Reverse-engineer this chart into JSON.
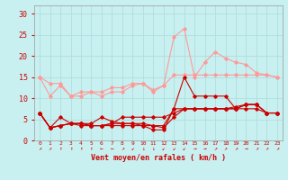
{
  "title": "",
  "xlabel": "Vent moyen/en rafales ( km/h )",
  "background_color": "#c8f0f0",
  "grid_color": "#b0dede",
  "x": [
    0,
    1,
    2,
    3,
    4,
    5,
    6,
    7,
    8,
    9,
    10,
    11,
    12,
    13,
    14,
    15,
    16,
    17,
    18,
    19,
    20,
    21,
    22,
    23
  ],
  "ylim": [
    0,
    32
  ],
  "yticks": [
    0,
    5,
    10,
    15,
    20,
    25,
    30
  ],
  "line1": [
    15.0,
    10.5,
    13.0,
    10.5,
    10.5,
    11.5,
    10.5,
    11.5,
    11.5,
    13.0,
    13.5,
    11.5,
    13.0,
    24.5,
    26.5,
    15.0,
    18.5,
    21.0,
    19.5,
    18.5,
    18.0,
    16.0,
    15.5,
    15.0
  ],
  "line2": [
    15.0,
    13.5,
    13.5,
    10.5,
    11.5,
    11.5,
    11.5,
    12.5,
    12.5,
    13.5,
    13.5,
    12.0,
    13.0,
    15.5,
    15.5,
    15.5,
    15.5,
    15.5,
    15.5,
    15.5,
    15.5,
    15.5,
    15.5,
    15.0
  ],
  "line3": [
    6.5,
    3.0,
    5.5,
    4.0,
    4.0,
    4.0,
    5.5,
    4.5,
    4.0,
    4.0,
    3.5,
    2.5,
    2.5,
    7.5,
    15.0,
    10.5,
    10.5,
    10.5,
    10.5,
    7.5,
    8.5,
    8.5,
    6.5,
    6.5
  ],
  "line4": [
    6.5,
    3.0,
    3.5,
    4.0,
    3.5,
    3.5,
    3.5,
    3.5,
    3.5,
    3.5,
    3.5,
    3.5,
    3.0,
    5.5,
    7.5,
    7.5,
    7.5,
    7.5,
    7.5,
    7.5,
    7.5,
    7.5,
    6.5,
    6.5
  ],
  "line5": [
    6.5,
    3.0,
    3.5,
    4.0,
    4.0,
    3.5,
    3.5,
    4.0,
    4.0,
    4.0,
    4.0,
    3.5,
    3.5,
    7.5,
    7.5,
    7.5,
    7.5,
    7.5,
    7.5,
    8.0,
    8.5,
    8.5,
    6.5,
    6.5
  ],
  "line6": [
    6.5,
    3.0,
    3.5,
    4.0,
    4.0,
    3.5,
    3.5,
    4.0,
    5.5,
    5.5,
    5.5,
    5.5,
    5.5,
    6.5,
    7.5,
    7.5,
    7.5,
    7.5,
    7.5,
    7.5,
    8.5,
    8.5,
    6.5,
    6.5
  ],
  "color_light": "#ff9999",
  "color_dark": "#cc0000",
  "arrows": [
    "↗",
    "↗",
    "↑",
    "↑",
    "↑",
    "↑",
    "←",
    "←",
    "↗",
    "↙",
    "↓",
    "↓",
    "↙",
    "↙",
    "↙",
    "→",
    "→",
    "↗",
    "↗",
    "↗",
    "→",
    "↗",
    "↗",
    "↗"
  ]
}
